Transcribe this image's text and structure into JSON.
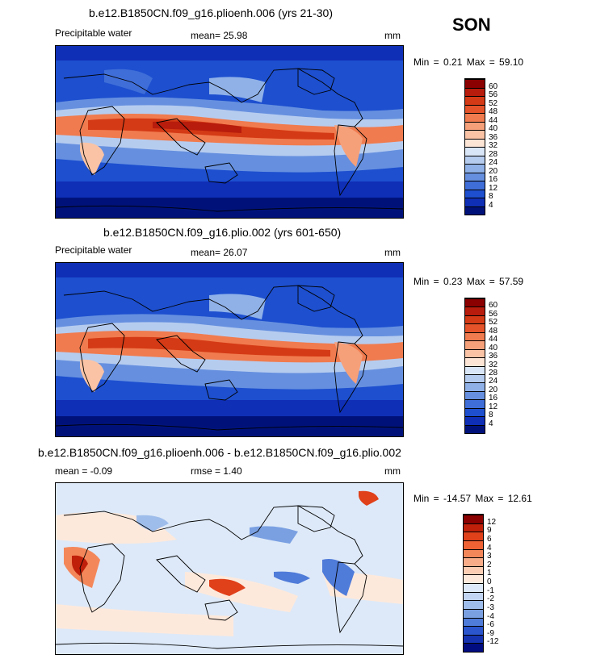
{
  "season": "SON",
  "panels": [
    {
      "id": "top",
      "title": "b.e12.B1850CN.f09_g16.plioenh.006 (yrs 21-30)",
      "left_label": "Precipitable water",
      "mid_label": "mean=   25.98",
      "right_label": "mm",
      "minmax": "Min =    0.21 Max =  59.10",
      "legend_levels": [
        "60",
        "56",
        "52",
        "48",
        "44",
        "40",
        "36",
        "32",
        "28",
        "24",
        "20",
        "16",
        "12",
        "8",
        "4"
      ],
      "legend_colors": [
        "#8b0000",
        "#b71c0c",
        "#d43a15",
        "#e5532a",
        "#f07b4e",
        "#f6a07a",
        "#fac3a6",
        "#fde5d6",
        "#d9e6f7",
        "#b6ccef",
        "#8fb1e8",
        "#6690df",
        "#3f6ed8",
        "#1d4fcf",
        "#0f2fb6",
        "#00127a"
      ]
    },
    {
      "id": "middle",
      "title": "b.e12.B1850CN.f09_g16.plio.002 (yrs 601-650)",
      "left_label": "Precipitable water",
      "mid_label": "mean=   26.07",
      "right_label": "mm",
      "minmax": "Min =    0.23 Max =  57.59",
      "legend_levels": [
        "60",
        "56",
        "52",
        "48",
        "44",
        "40",
        "36",
        "32",
        "28",
        "24",
        "20",
        "16",
        "12",
        "8",
        "4"
      ],
      "legend_colors": [
        "#8b0000",
        "#b71c0c",
        "#d43a15",
        "#e5532a",
        "#f07b4e",
        "#f6a07a",
        "#fac3a6",
        "#fde5d6",
        "#d9e6f7",
        "#b6ccef",
        "#8fb1e8",
        "#6690df",
        "#3f6ed8",
        "#1d4fcf",
        "#0f2fb6",
        "#00127a"
      ]
    },
    {
      "id": "bottom",
      "title": "b.e12.B1850CN.f09_g16.plioenh.006 - b.e12.B1850CN.f09_g16.plio.002",
      "left_label": "mean =   -0.09",
      "mid_label": "rmse =    1.40",
      "right_label": "mm",
      "minmax": "Min = -14.57 Max =  12.61",
      "legend_levels": [
        "12",
        "9",
        "6",
        "4",
        "3",
        "2",
        "1",
        "0",
        "-1",
        "-2",
        "-3",
        "-4",
        "-6",
        "-9",
        "-12"
      ],
      "legend_colors": [
        "#8b0000",
        "#c0200a",
        "#e0401a",
        "#ee6234",
        "#f4875a",
        "#f8ac88",
        "#fbcdb3",
        "#fde9dc",
        "#dde9f8",
        "#c2d5f2",
        "#9fbdeb",
        "#7aa0e2",
        "#4f7bd9",
        "#2a55cc",
        "#1533b0",
        "#000c80"
      ]
    }
  ],
  "colors": {
    "ocean_deep": "#0f2fb6",
    "ocean_polar": "#00127a",
    "anomaly_base": "#dde9f8"
  }
}
